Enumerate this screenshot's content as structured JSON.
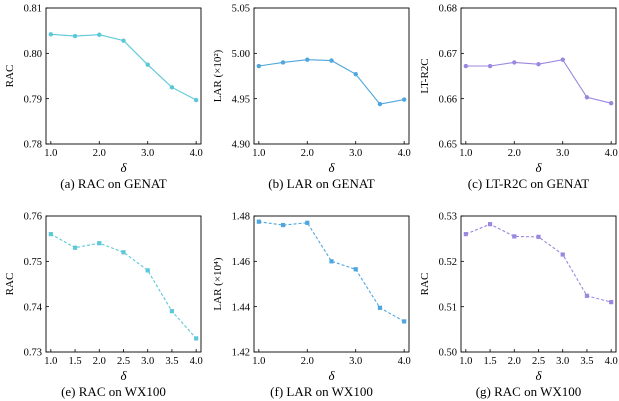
{
  "chart_data": [
    {
      "type": "line",
      "caption": "(a) RAC on GENAT",
      "ylabel": "RAC",
      "xlabel": "δ",
      "color": "#5bc8d8",
      "marker": "circle",
      "dashed": false,
      "x": [
        1.0,
        1.5,
        2.0,
        2.5,
        3.0,
        3.5,
        4.0
      ],
      "x_ticks": [
        "1.0",
        "2.0",
        "3.0",
        "4.0"
      ],
      "y": [
        0.8042,
        0.8038,
        0.8041,
        0.8028,
        0.7975,
        0.7925,
        0.7897
      ],
      "y_ticks": [
        "0.78",
        "0.79",
        "0.80",
        "0.81"
      ],
      "ylim": [
        0.78,
        0.81
      ]
    },
    {
      "type": "line",
      "caption": "(b) LAR on GENAT",
      "ylabel": "LAR (×10²)",
      "xlabel": "δ",
      "color": "#4fa6de",
      "marker": "circle",
      "dashed": false,
      "x": [
        1.0,
        1.5,
        2.0,
        2.5,
        3.0,
        3.5,
        4.0
      ],
      "x_ticks": [
        "1.0",
        "2.0",
        "3.0",
        "4.0"
      ],
      "y": [
        4.986,
        4.99,
        4.993,
        4.992,
        4.977,
        4.944,
        4.949
      ],
      "y_ticks": [
        "4.90",
        "4.95",
        "5.00",
        "5.05"
      ],
      "ylim": [
        4.9,
        5.05
      ]
    },
    {
      "type": "line",
      "caption": "(c) LT-R2C on GENAT",
      "ylabel": "LT-R2C",
      "xlabel": "δ",
      "color": "#9b87e0",
      "marker": "circle",
      "dashed": false,
      "x": [
        1.0,
        1.5,
        2.0,
        2.5,
        3.0,
        3.5,
        4.0
      ],
      "x_ticks": [
        "1.0",
        "2.0",
        "3.0",
        "4.0"
      ],
      "y": [
        0.6672,
        0.6672,
        0.668,
        0.6676,
        0.6686,
        0.6603,
        0.659
      ],
      "y_ticks": [
        "0.65",
        "0.66",
        "0.67",
        "0.68"
      ],
      "ylim": [
        0.65,
        0.68
      ]
    },
    {
      "type": "line",
      "caption": "(e) RAC on WX100",
      "ylabel": "RAC",
      "xlabel": "δ",
      "color": "#5bc8d8",
      "marker": "square",
      "dashed": true,
      "x": [
        1.0,
        1.5,
        2.0,
        2.5,
        3.0,
        3.5,
        4.0
      ],
      "x_ticks": [
        "1.0",
        "1.5",
        "2.0",
        "2.5",
        "3.0",
        "3.5",
        "4.0"
      ],
      "y": [
        0.756,
        0.753,
        0.754,
        0.752,
        0.748,
        0.739,
        0.733
      ],
      "y_ticks": [
        "0.73",
        "0.74",
        "0.75",
        "0.76"
      ],
      "ylim": [
        0.73,
        0.76
      ]
    },
    {
      "type": "line",
      "caption": "(f) LAR on WX100",
      "ylabel": "LAR (×10⁴)",
      "xlabel": "δ",
      "color": "#4fa6de",
      "marker": "square",
      "dashed": true,
      "x": [
        1.0,
        1.5,
        2.0,
        2.5,
        3.0,
        3.5,
        4.0
      ],
      "x_ticks": [
        "1.0",
        "2.0",
        "3.0",
        "4.0"
      ],
      "y": [
        1.4775,
        1.476,
        1.477,
        1.46,
        1.4565,
        1.4395,
        1.4335
      ],
      "y_ticks": [
        "1.42",
        "1.44",
        "1.46",
        "1.48"
      ],
      "ylim": [
        1.42,
        1.48
      ]
    },
    {
      "type": "line",
      "caption": "(g) RAC on WX100",
      "ylabel": "RAC",
      "xlabel": "δ",
      "color": "#9b87e0",
      "marker": "square",
      "dashed": true,
      "x": [
        1.0,
        1.5,
        2.0,
        2.5,
        3.0,
        3.5,
        4.0
      ],
      "x_ticks": [
        "1.0",
        "1.5",
        "2.0",
        "2.5",
        "3.0",
        "3.5",
        "4.0"
      ],
      "y": [
        0.526,
        0.5282,
        0.5255,
        0.5254,
        0.5215,
        0.5124,
        0.511
      ],
      "y_ticks": [
        "0.50",
        "0.51",
        "0.52",
        "0.53"
      ],
      "ylim": [
        0.5,
        0.53
      ]
    }
  ]
}
